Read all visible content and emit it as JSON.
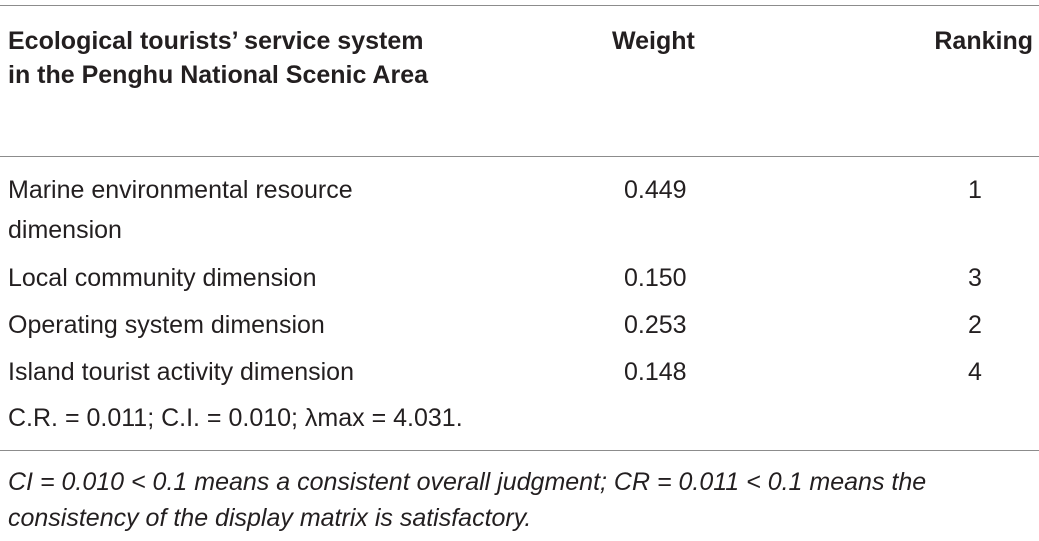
{
  "table": {
    "headers": {
      "dimension": "Ecological tourists’ service system in the Penghu National Scenic Area",
      "weight": "Weight",
      "ranking": "Ranking"
    },
    "rows": [
      {
        "dimension": "Marine environmental resource dimension",
        "weight": "0.449",
        "ranking": "1"
      },
      {
        "dimension": "Local community dimension",
        "weight": "0.150",
        "ranking": "3"
      },
      {
        "dimension": "Operating system dimension",
        "weight": "0.253",
        "ranking": "2"
      },
      {
        "dimension": "Island tourist activity dimension",
        "weight": "0.148",
        "ranking": "4"
      }
    ],
    "stats_line": "C.R. = 0.011; C.I. = 0.010; λmax = 4.031."
  },
  "footnote": "CI = 0.010 < 0.1 means a consistent overall judgment; CR = 0.011 < 0.1 means the consistency of the display matrix is satisfactory.",
  "colors": {
    "text": "#231f20",
    "rules": "#8c8c8c",
    "background": "#ffffff"
  }
}
